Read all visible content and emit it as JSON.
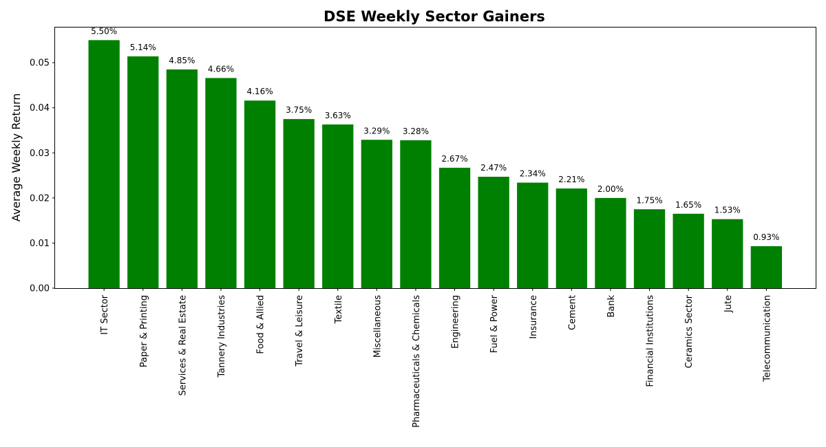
{
  "chart_data": {
    "type": "bar",
    "title": "DSE Weekly Sector Gainers",
    "xlabel": "",
    "ylabel": "Average Weekly Return",
    "ylim": [
      0,
      0.0578
    ],
    "yticks": [
      "0.00",
      "0.01",
      "0.02",
      "0.03",
      "0.04",
      "0.05"
    ],
    "categories": [
      "IT Sector",
      "Paper & Printing",
      "Services & Real Estate",
      "Tannery Industries",
      "Food & Allied",
      "Travel & Leisure",
      "Textile",
      "Miscellaneous",
      "Pharmaceuticals & Chemicals",
      "Engineering",
      "Fuel & Power",
      "Insurance",
      "Cement",
      "Bank",
      "Financial Institutions",
      "Ceramics Sector",
      "Jute",
      "Telecommunication"
    ],
    "values": [
      0.055,
      0.0514,
      0.0485,
      0.0466,
      0.0416,
      0.0375,
      0.0363,
      0.0329,
      0.0328,
      0.0267,
      0.0247,
      0.0234,
      0.0221,
      0.02,
      0.0175,
      0.0165,
      0.0153,
      0.0093
    ],
    "data_labels": [
      "5.50%",
      "5.14%",
      "4.85%",
      "4.66%",
      "4.16%",
      "3.75%",
      "3.63%",
      "3.29%",
      "3.28%",
      "2.67%",
      "2.47%",
      "2.34%",
      "2.21%",
      "2.00%",
      "1.75%",
      "1.65%",
      "1.53%",
      "0.93%"
    ],
    "bar_color": "#008000",
    "grid": false,
    "legend": "none"
  }
}
